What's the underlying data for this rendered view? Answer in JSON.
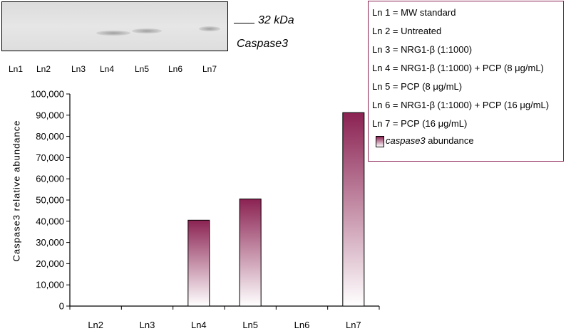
{
  "blot": {
    "marker_label": "32 kDa",
    "protein_label": "Caspase3",
    "lanes": [
      "Ln1",
      "Ln2",
      "Ln3",
      "Ln4",
      "Ln5",
      "Ln6",
      "Ln7"
    ]
  },
  "legend": {
    "lines": [
      "Ln 1 = MW standard",
      "Ln 2 = Untreated",
      "Ln 3 = NRG1-β (1:1000)",
      "Ln 4 = NRG1-β (1:1000) + PCP (8 μg/mL)",
      "Ln 5 = PCP (8 μg/mL)",
      "Ln 6 = NRG1-β (1:1000) + PCP (16 μg/mL)",
      "Ln 7 = PCP (16 μg/mL)"
    ],
    "series_italic": "caspase3",
    "series_rest": " abundance"
  },
  "chart_data": {
    "type": "bar",
    "categories": [
      "Ln2",
      "Ln3",
      "Ln4",
      "Ln5",
      "Ln6",
      "Ln7"
    ],
    "series": [
      {
        "name": "caspase3 abundance",
        "values": [
          0,
          0,
          40500,
          50500,
          0,
          91200
        ]
      }
    ],
    "ylabel": "Caspase3 relative abundance",
    "ylim": [
      0,
      100000
    ],
    "yticks": [
      "0",
      "10,000",
      "20,000",
      "30,000",
      "40,000",
      "50,000",
      "60,000",
      "70,000",
      "80,000",
      "90,000",
      "100,000"
    ],
    "grid": false,
    "legend_position": "top-right",
    "colors": {
      "bar_top": "#8b2252",
      "bar_bottom": "#ffffff",
      "axis": "#000000"
    }
  }
}
